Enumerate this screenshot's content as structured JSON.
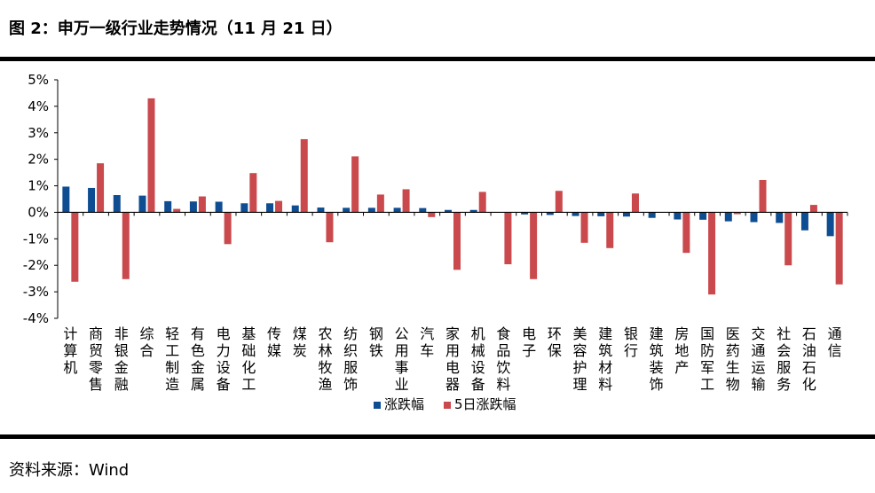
{
  "header": {
    "title": "图 2：申万一级行业走势情况（11 月 21 日）"
  },
  "footer": {
    "source": "资料来源：Wind"
  },
  "colors": {
    "series1": "#0f4d92",
    "series2": "#c9494d"
  },
  "chart_data": {
    "type": "bar",
    "categories": [
      "计算机",
      "商贸零售",
      "非银金融",
      "综合",
      "轻工制造",
      "有色金属",
      "电力设备",
      "基础化工",
      "传媒",
      "煤炭",
      "农林牧渔",
      "纺织服饰",
      "钢铁",
      "公用事业",
      "汽车",
      "家用电器",
      "机械设备",
      "食品饮料",
      "电子",
      "环保",
      "美容护理",
      "建筑材料",
      "银行",
      "建筑装饰",
      "房地产",
      "国防军工",
      "医药生物",
      "交通运输",
      "社会服务",
      "石油石化",
      "通信"
    ],
    "series": [
      {
        "name": "涨跌幅",
        "values": [
          0.97,
          0.92,
          0.65,
          0.63,
          0.42,
          0.41,
          0.4,
          0.34,
          0.34,
          0.26,
          0.18,
          0.17,
          0.17,
          0.17,
          0.16,
          0.09,
          0.09,
          -0.01,
          -0.08,
          -0.1,
          -0.14,
          -0.15,
          -0.16,
          -0.21,
          -0.27,
          -0.28,
          -0.34,
          -0.37,
          -0.4,
          -0.68,
          -0.9
        ]
      },
      {
        "name": "5日涨跌幅",
        "values": [
          -2.62,
          1.85,
          -2.52,
          4.3,
          0.13,
          0.6,
          -1.2,
          1.48,
          0.43,
          2.76,
          -1.13,
          2.11,
          0.67,
          0.87,
          -0.18,
          -2.17,
          0.77,
          -1.96,
          -2.52,
          0.81,
          -1.15,
          -1.35,
          0.71,
          0.0,
          -1.53,
          -3.1,
          -0.07,
          1.22,
          -2.0,
          0.28,
          -2.72
        ]
      }
    ],
    "yticks": [
      "5%",
      "4%",
      "3%",
      "2%",
      "1%",
      "0%",
      "-1%",
      "-2%",
      "-3%",
      "-4%"
    ],
    "ylim": [
      -4,
      5
    ],
    "legend": "bottom-center"
  }
}
